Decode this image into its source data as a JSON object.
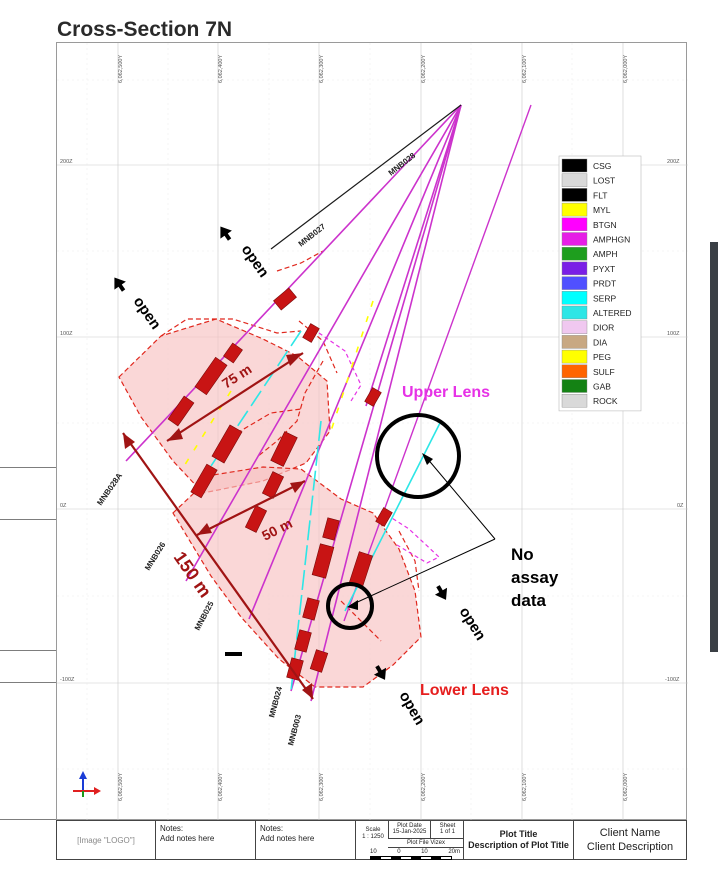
{
  "title": "Cross-Section 7N",
  "northings": [
    "6,062,500Y",
    "6,062,400Y",
    "6,062,300Y",
    "6,062,200Y",
    "6,062,100Y",
    "6,062,000Y"
  ],
  "elevations": [
    "200Z",
    "100Z",
    "0Z",
    "-100Z"
  ],
  "holes": [
    "MNB028",
    "MNB027",
    "MNB028A",
    "MNB026",
    "MNB025",
    "MNB024",
    "MNB003"
  ],
  "labels": {
    "open": "open",
    "upper_lens": "Upper Lens",
    "lower_lens": "Lower Lens",
    "no_assay": [
      "No",
      "assay",
      "data"
    ],
    "dim_75": "75 m",
    "dim_50": "50 m",
    "dim_150": "150 m"
  },
  "legend": [
    {
      "code": "CSG",
      "color": "#000000"
    },
    {
      "code": "LOST",
      "color": "#d9d9d9"
    },
    {
      "code": "FLT",
      "color": "#000000"
    },
    {
      "code": "MYL",
      "color": "#ffff00"
    },
    {
      "code": "BTGN",
      "color": "#ff00ff"
    },
    {
      "code": "AMPHGN",
      "color": "#e61ee6"
    },
    {
      "code": "AMPH",
      "color": "#1e9e1e"
    },
    {
      "code": "PYXT",
      "color": "#7a1ee6"
    },
    {
      "code": "PRDT",
      "color": "#5050ff"
    },
    {
      "code": "SERP",
      "color": "#00ffff"
    },
    {
      "code": "ALTERED",
      "color": "#2de6e6"
    },
    {
      "code": "DIOR",
      "color": "#f0c8f0"
    },
    {
      "code": "DIA",
      "color": "#c8a882"
    },
    {
      "code": "PEG",
      "color": "#ffff00"
    },
    {
      "code": "SULF",
      "color": "#ff6400"
    },
    {
      "code": "GAB",
      "color": "#148214"
    },
    {
      "code": "ROCK",
      "color": "#d9d9d9"
    }
  ],
  "colors": {
    "lens_fill": "#f7c2c2",
    "lens_outline": "#e0281e",
    "ore_body": "#c81414",
    "dimension": "#a01414",
    "upper_lens_text": "#e632e6",
    "lower_lens_text": "#e61e1e"
  },
  "title_block": {
    "logo": "[Image \"LOGO\"]",
    "notes_label": "Notes:",
    "notes_text": "Add notes here",
    "scale_label": "Scale",
    "scale_value": "1 : 1250",
    "plot_date_label": "Plot Date",
    "plot_date_value": "15-Jan-2025",
    "sheet_label": "Sheet",
    "sheet_value": "1 of 1",
    "plot_file_label": "Plot File Vizex",
    "scale_ticks": [
      "10",
      "0",
      "10",
      "20m"
    ],
    "plot_title": "Plot Title",
    "plot_desc": "Description of Plot Title",
    "client_name": "Client Name",
    "client_desc": "Client Description"
  }
}
